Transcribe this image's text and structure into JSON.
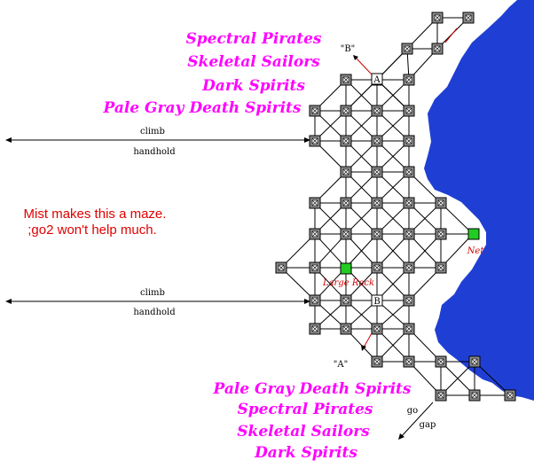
{
  "colors": {
    "water": "#1f3fd4",
    "room_fill": "#8a8a8a",
    "special_room": "#22cc22",
    "mob_text": "#ff00ff",
    "note_text": "#e00000"
  },
  "mob_lists": {
    "top": [
      "Spectral Pirates",
      "Skeletal Sailors",
      "Dark Spirits",
      "Pale Gray Death Spirits"
    ],
    "bottom": [
      "Pale Gray Death Spirits",
      "Spectral Pirates",
      "Skeletal Sailors",
      "Dark Spirits"
    ]
  },
  "notes": {
    "line1": "Mist makes this a maze.",
    "line2": ";go2 won't help much."
  },
  "exits": {
    "upper": {
      "top": "climb",
      "bottom": "handhold"
    },
    "lower": {
      "top": "climb",
      "bottom": "handhold"
    },
    "corner": {
      "top": "go",
      "bottom": "gap"
    }
  },
  "markers": {
    "b_pointer": "\"B\"",
    "a_pointer": "\"A\"",
    "room_a": "A",
    "room_b": "B"
  },
  "labels": {
    "net": "Net",
    "large_rock": "Large Rock"
  }
}
